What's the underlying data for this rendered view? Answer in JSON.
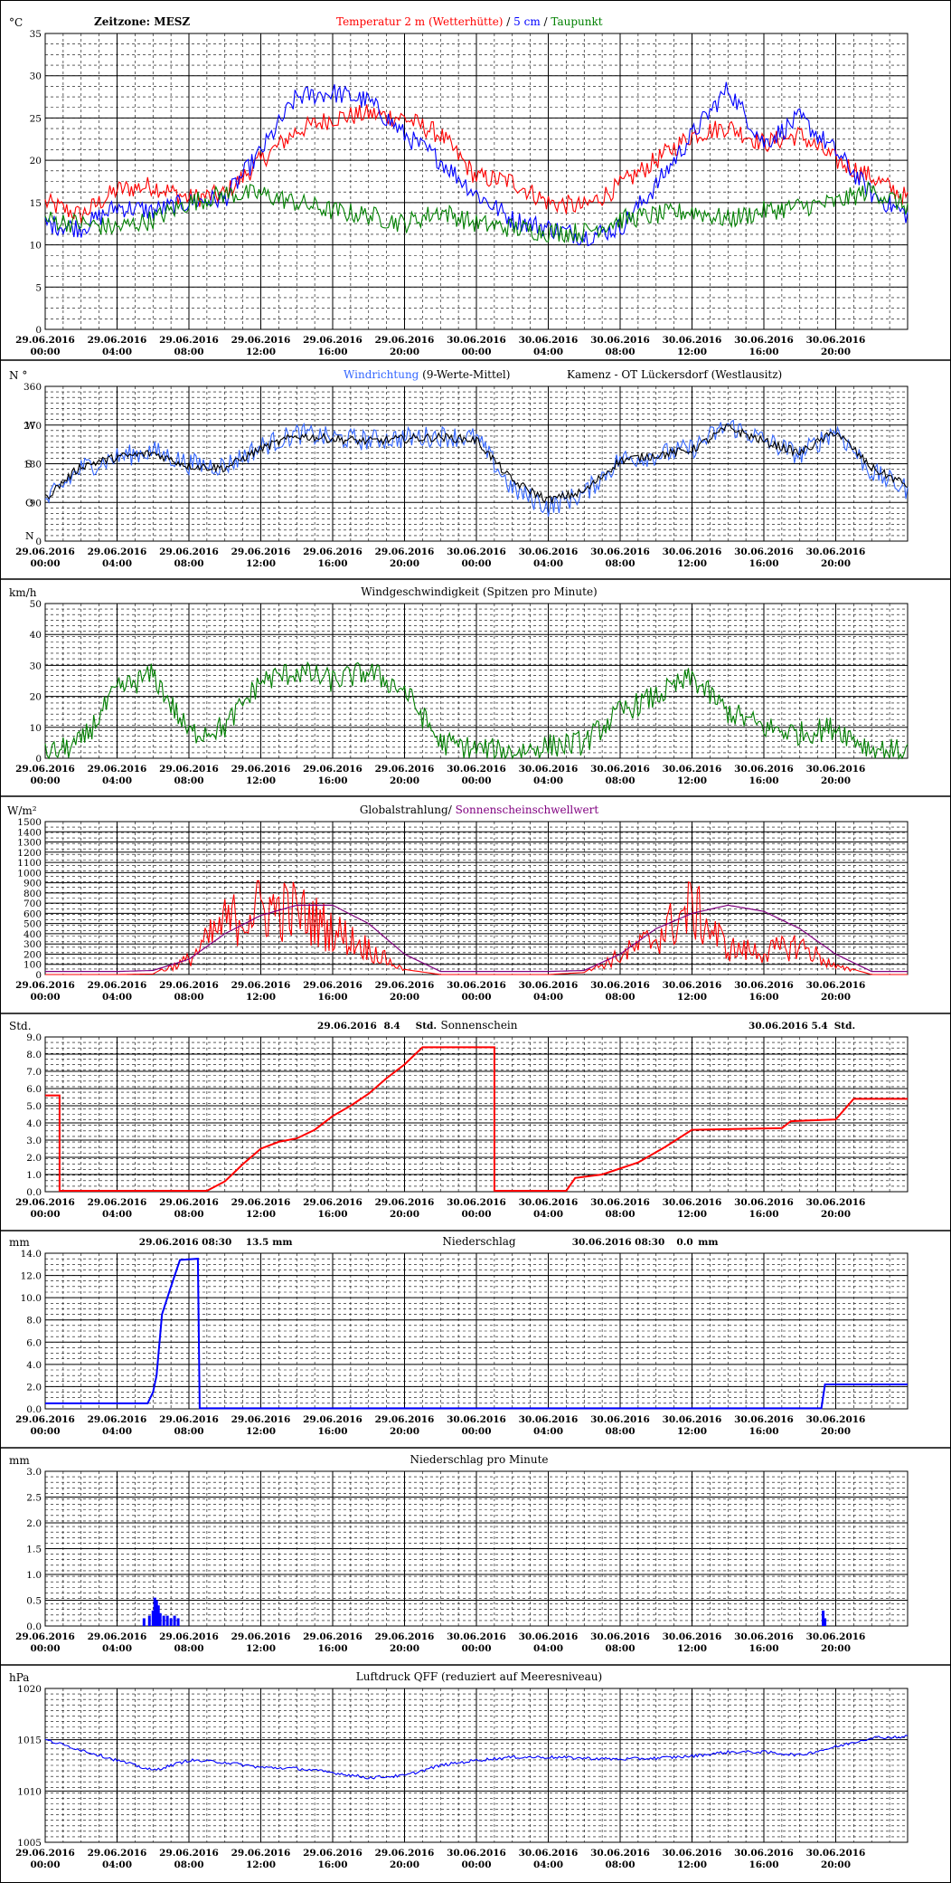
{
  "x_ticks": [
    [
      "29.06.2016",
      "00:00"
    ],
    [
      "29.06.2016",
      "04:00"
    ],
    [
      "29.06.2016",
      "08:00"
    ],
    [
      "29.06.2016",
      "12:00"
    ],
    [
      "29.06.2016",
      "16:00"
    ],
    [
      "29.06.2016",
      "20:00"
    ],
    [
      "30.06.2016",
      "00:00"
    ],
    [
      "30.06.2016",
      "04:00"
    ],
    [
      "30.06.2016",
      "08:00"
    ],
    [
      "30.06.2016",
      "12:00"
    ],
    [
      "30.06.2016",
      "16:00"
    ],
    [
      "30.06.2016",
      "20:00"
    ]
  ],
  "colors": {
    "red": "#ff0000",
    "blue": "#0000ff",
    "green": "#008000",
    "lightblue": "#3366ff",
    "purple": "#800080",
    "black": "#000000"
  },
  "chart_data": [
    {
      "type": "line",
      "ylabel": "°C",
      "header_left": "Zeitzone: MESZ",
      "header_title": [
        {
          "text": "Temperatur 2 m (Wetterhütte)",
          "color": "red"
        },
        {
          "text": "  /  ",
          "color": "black"
        },
        {
          "text": "5 cm",
          "color": "blue"
        },
        {
          "text": " / ",
          "color": "black"
        },
        {
          "text": "Taupunkt",
          "color": "green"
        }
      ],
      "ylim": [
        0,
        35
      ],
      "y_ticks": [
        0,
        5,
        10,
        15,
        20,
        25,
        30,
        35
      ],
      "x_hours": [
        0,
        2,
        4,
        6,
        8,
        10,
        12,
        14,
        16,
        18,
        20,
        22,
        24,
        26,
        28,
        30,
        32,
        34,
        36,
        38,
        40,
        42,
        44,
        46,
        48
      ],
      "series": [
        {
          "name": "Temperatur 2 m (Wetterhütte)",
          "color": "red",
          "values": [
            15,
            13.5,
            16.5,
            17,
            15.5,
            16,
            20,
            23.5,
            25,
            25.5,
            25,
            23,
            18,
            17.5,
            15,
            14.5,
            17,
            20,
            23,
            24,
            22,
            23,
            20,
            18,
            15.5
          ]
        },
        {
          "name": "5 cm",
          "color": "blue",
          "values": [
            12.5,
            12,
            14.5,
            14,
            15,
            15.5,
            21,
            27.5,
            28,
            27,
            23,
            20,
            16,
            13,
            12,
            11,
            12,
            17,
            23,
            28.5,
            22,
            25,
            21,
            16,
            13.5
          ]
        },
        {
          "name": "Taupunkt",
          "color": "green",
          "values": [
            13,
            12.5,
            12,
            13,
            15,
            16,
            16,
            15,
            14,
            13.5,
            12.5,
            14,
            12.5,
            12,
            11.5,
            11.5,
            13,
            13.5,
            14,
            13,
            14,
            14.5,
            15,
            16.5,
            14.5
          ]
        }
      ]
    },
    {
      "type": "line",
      "ylabel": "N °",
      "header_title": [
        {
          "text": "Windrichtung",
          "color": "lightblue"
        },
        {
          "text": " (9-Werte-Mittel)",
          "color": "black"
        }
      ],
      "header_right": "Kamenz - OT Lückersdorf (Westlausitz)",
      "ylim": [
        0,
        360
      ],
      "y_ticks": [
        0,
        90,
        180,
        270,
        360
      ],
      "compass_labels": [
        {
          "v": 0,
          "t": "N"
        },
        {
          "v": 90,
          "t": "O"
        },
        {
          "v": 180,
          "t": "S"
        },
        {
          "v": 270,
          "t": "W"
        }
      ],
      "x_hours": [
        0,
        2,
        4,
        6,
        8,
        10,
        12,
        14,
        16,
        18,
        20,
        22,
        24,
        26,
        28,
        30,
        32,
        34,
        36,
        38,
        40,
        42,
        44,
        46,
        48
      ],
      "series": [
        {
          "name": "Windrichtung",
          "color": "lightblue",
          "values": [
            90,
            170,
            195,
            210,
            180,
            175,
            220,
            250,
            240,
            235,
            240,
            245,
            240,
            120,
            80,
            110,
            190,
            200,
            215,
            270,
            235,
            200,
            260,
            160,
            120
          ]
        },
        {
          "name": "9-Werte-Mittel",
          "color": "black",
          "values": [
            100,
            175,
            195,
            205,
            175,
            170,
            215,
            245,
            238,
            232,
            238,
            242,
            235,
            140,
            95,
            115,
            188,
            200,
            212,
            265,
            232,
            205,
            255,
            170,
            130
          ]
        }
      ]
    },
    {
      "type": "line",
      "ylabel": "km/h",
      "header_title": [
        {
          "text": "Windgeschwindigkeit (Spitzen pro Minute)",
          "color": "black"
        }
      ],
      "ylim": [
        0,
        50
      ],
      "y_ticks": [
        0,
        10,
        20,
        30,
        40,
        50
      ],
      "x_hours": [
        0,
        2,
        4,
        6,
        8,
        10,
        12,
        14,
        16,
        18,
        20,
        22,
        24,
        26,
        28,
        30,
        32,
        34,
        36,
        38,
        40,
        42,
        44,
        46,
        48
      ],
      "series": [
        {
          "name": "Windgeschwindigkeit",
          "color": "green",
          "values": [
            1,
            5,
            22,
            27,
            8,
            10,
            25,
            28,
            25,
            28,
            22,
            5,
            3,
            2,
            4,
            5,
            15,
            20,
            26,
            15,
            10,
            8,
            10,
            3,
            2
          ]
        }
      ]
    },
    {
      "type": "line",
      "ylabel": "W/m²",
      "header_title": [
        {
          "text": "Globalstrahlung/ ",
          "color": "black"
        },
        {
          "text": "Sonnenscheinschwellwert",
          "color": "purple"
        }
      ],
      "ylim": [
        0,
        1500
      ],
      "y_ticks": [
        0,
        100,
        200,
        300,
        400,
        500,
        600,
        700,
        800,
        900,
        1000,
        1100,
        1200,
        1300,
        1400,
        1500
      ],
      "x_hours": [
        0,
        2,
        4,
        6,
        8,
        10,
        12,
        14,
        16,
        18,
        20,
        22,
        24,
        26,
        28,
        30,
        32,
        34,
        36,
        38,
        40,
        42,
        44,
        46,
        48
      ],
      "series": [
        {
          "name": "Globalstrahlung",
          "color": "red",
          "values": [
            0,
            0,
            0,
            5,
            200,
            700,
            900,
            850,
            600,
            350,
            50,
            0,
            0,
            0,
            0,
            20,
            250,
            500,
            900,
            350,
            300,
            400,
            100,
            0,
            0
          ]
        },
        {
          "name": "Sonnenscheinschwellwert",
          "color": "purple",
          "values": [
            30,
            30,
            30,
            40,
            150,
            400,
            580,
            680,
            680,
            500,
            200,
            30,
            30,
            30,
            30,
            40,
            200,
            450,
            600,
            680,
            620,
            450,
            200,
            30,
            30
          ]
        }
      ]
    },
    {
      "type": "line",
      "ylabel": "Std.",
      "header_title": [
        {
          "text": "Sonnenschein",
          "color": "black"
        }
      ],
      "header_items": [
        {
          "text": "29.06.2016",
          "anchor_hour": 16.8
        },
        {
          "text": "8.4",
          "anchor_hour": 19.3
        },
        {
          "text": "Std.",
          "anchor_hour": 21.2
        },
        {
          "text": "30.06.2016",
          "anchor_hour": 40.8
        },
        {
          "text": "5.4",
          "anchor_hour": 43.1
        },
        {
          "text": "Std.",
          "anchor_hour": 44.5
        }
      ],
      "ylim": [
        0,
        9
      ],
      "y_ticks": [
        0,
        1,
        2,
        3,
        4,
        5,
        6,
        7,
        8,
        9
      ],
      "y_tick_format": "1dp",
      "series": [
        {
          "name": "Sonnenschein",
          "color": "red",
          "points": [
            [
              0,
              5.6
            ],
            [
              0.8,
              5.6
            ],
            [
              0.8,
              0.05
            ],
            [
              9,
              0.05
            ],
            [
              10,
              0.6
            ],
            [
              11,
              1.6
            ],
            [
              12,
              2.5
            ],
            [
              13,
              2.9
            ],
            [
              14,
              3.1
            ],
            [
              15,
              3.6
            ],
            [
              16,
              4.4
            ],
            [
              17,
              5.0
            ],
            [
              18,
              5.7
            ],
            [
              19,
              6.6
            ],
            [
              20,
              7.4
            ],
            [
              21,
              8.4
            ],
            [
              25,
              8.4
            ],
            [
              25,
              0.05
            ],
            [
              29,
              0.05
            ],
            [
              29.5,
              0.8
            ],
            [
              31,
              1.0
            ],
            [
              33,
              1.7
            ],
            [
              34.5,
              2.6
            ],
            [
              36,
              3.6
            ],
            [
              41,
              3.7
            ],
            [
              41.5,
              4.1
            ],
            [
              44,
              4.2
            ],
            [
              45,
              5.4
            ],
            [
              48,
              5.4
            ]
          ]
        }
      ]
    },
    {
      "type": "line",
      "ylabel": "mm",
      "header_title": [
        {
          "text": "Niederschlag",
          "color": "black"
        }
      ],
      "header_items": [
        {
          "text": "29.06.2016 08:30",
          "anchor_hour": 7.8
        },
        {
          "text": "13.5",
          "anchor_hour": 11.8
        },
        {
          "text": "mm",
          "anchor_hour": 13.2
        },
        {
          "text": "30.06.2016 08:30",
          "anchor_hour": 31.9
        },
        {
          "text": "0.0",
          "anchor_hour": 35.6
        },
        {
          "text": "mm",
          "anchor_hour": 36.9
        }
      ],
      "ylim": [
        0,
        14
      ],
      "y_ticks": [
        0,
        2,
        4,
        6,
        8,
        10,
        12,
        14
      ],
      "y_tick_format": "1dp",
      "series": [
        {
          "name": "Niederschlag",
          "color": "blue",
          "points": [
            [
              0,
              0.5
            ],
            [
              5.7,
              0.5
            ],
            [
              6,
              1.5
            ],
            [
              6.2,
              3
            ],
            [
              6.5,
              8.5
            ],
            [
              7,
              11
            ],
            [
              7.5,
              13.4
            ],
            [
              8.5,
              13.5
            ],
            [
              8.6,
              0.05
            ],
            [
              43.2,
              0.05
            ],
            [
              43.4,
              2.2
            ],
            [
              48,
              2.2
            ]
          ]
        }
      ]
    },
    {
      "type": "bar",
      "ylabel": "mm",
      "header_title": [
        {
          "text": "Niederschlag pro Minute",
          "color": "black"
        }
      ],
      "ylim": [
        0,
        3
      ],
      "y_ticks": [
        0,
        0.5,
        1,
        1.5,
        2,
        2.5,
        3
      ],
      "y_tick_format": "1dp",
      "bars": [
        [
          5.5,
          0.15
        ],
        [
          5.8,
          0.2
        ],
        [
          6.0,
          0.3
        ],
        [
          6.1,
          0.55
        ],
        [
          6.2,
          0.5
        ],
        [
          6.3,
          0.4
        ],
        [
          6.4,
          0.25
        ],
        [
          6.6,
          0.2
        ],
        [
          6.8,
          0.2
        ],
        [
          7.0,
          0.15
        ],
        [
          7.2,
          0.2
        ],
        [
          7.4,
          0.15
        ],
        [
          43.3,
          0.3
        ],
        [
          43.4,
          0.15
        ]
      ],
      "series": [
        {
          "name": "Niederschlag pro Minute",
          "color": "blue"
        }
      ]
    },
    {
      "type": "line",
      "ylabel": "hPa",
      "header_title": [
        {
          "text": "Luftdruck QFF (reduziert auf Meeresniveau)",
          "color": "black"
        }
      ],
      "ylim": [
        1005,
        1020
      ],
      "y_ticks": [
        1005,
        1010,
        1015,
        1020
      ],
      "x_hours": [
        0,
        2,
        4,
        6,
        8,
        10,
        12,
        14,
        16,
        18,
        20,
        22,
        24,
        26,
        28,
        30,
        32,
        34,
        36,
        38,
        40,
        42,
        44,
        46,
        48
      ],
      "series": [
        {
          "name": "Luftdruck QFF",
          "color": "blue",
          "values": [
            1015,
            1014,
            1013,
            1012,
            1013,
            1012.8,
            1012.3,
            1012.2,
            1011.8,
            1011.3,
            1011.5,
            1012.5,
            1013,
            1013.3,
            1013.3,
            1013.2,
            1013.1,
            1013.2,
            1013.4,
            1013.8,
            1013.8,
            1013.5,
            1014.3,
            1015.2,
            1015.3
          ]
        }
      ]
    }
  ]
}
